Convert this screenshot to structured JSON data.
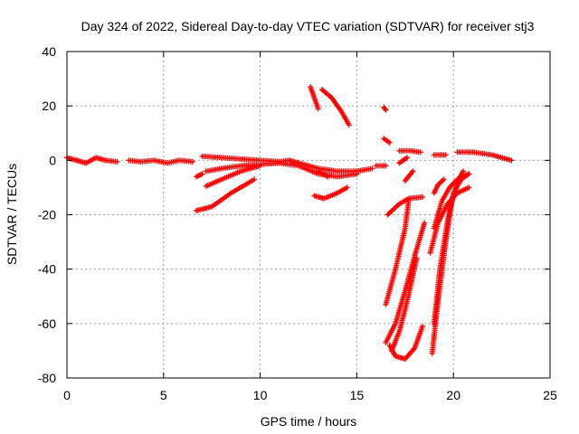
{
  "chart_data": {
    "type": "scatter",
    "title": "Day 324 of 2022, Sidereal Day-to-day VTEC variation (SDTVAR) for receiver stj3",
    "xlabel": "GPS time / hours",
    "ylabel": "SDTVAR / TECUs",
    "xlim": [
      0,
      25
    ],
    "ylim": [
      -80,
      40
    ],
    "x_ticks": [
      "0",
      "5",
      "10",
      "15",
      "20",
      "25"
    ],
    "y_ticks": [
      "-80",
      "-60",
      "-40",
      "-20",
      "0",
      "20",
      "40"
    ],
    "grid": true,
    "marker": "+",
    "color": "#ff0000",
    "series": [
      {
        "segments": [
          {
            "x": [
              0,
              0.5,
              1.0,
              1.5,
              2.0,
              2.6
            ],
            "y": [
              1,
              0,
              -1,
              1,
              0,
              -0.5
            ]
          },
          {
            "x": [
              3.2,
              3.8,
              4.5,
              5.2,
              5.8,
              6.5
            ],
            "y": [
              0,
              -0.5,
              0,
              -1,
              0,
              -0.5
            ]
          },
          {
            "x": [
              7.0,
              8.0,
              9.0,
              10.0,
              11.0,
              11.5,
              12.0,
              13.0,
              14.0,
              15.0,
              15.8
            ],
            "y": [
              1.5,
              1,
              0.5,
              0,
              -0.5,
              0,
              -1,
              -3,
              -4,
              -4,
              -3
            ]
          },
          {
            "x": [
              7.2,
              8.0,
              9.0,
              10.0,
              11.0,
              12.0,
              13.0,
              14.0,
              15.0
            ],
            "y": [
              -4,
              -3,
              -2,
              -1.5,
              -1,
              -2,
              -5,
              -6,
              -5
            ]
          },
          {
            "x": [
              16.0,
              16.5
            ],
            "y": [
              -2,
              -2
            ]
          },
          {
            "x": [
              6.7,
              7.0
            ],
            "y": [
              -6,
              -5
            ]
          }
        ]
      },
      {
        "segments": [
          {
            "x": [
              7.2,
              8.0,
              9.0,
              10.0
            ],
            "y": [
              -9.5,
              -7,
              -4,
              -2
            ]
          },
          {
            "x": [
              6.7,
              7.5,
              8.5,
              9.7
            ],
            "y": [
              -18.5,
              -17,
              -12,
              -7
            ]
          }
        ]
      },
      {
        "segments": [
          {
            "x": [
              12.6,
              13.0
            ],
            "y": [
              27,
              19
            ]
          },
          {
            "x": [
              13.2,
              13.7,
              14.2,
              14.6
            ],
            "y": [
              26,
              23,
              18,
              13
            ]
          },
          {
            "x": [
              16.4,
              16.5
            ],
            "y": [
              19.5,
              18.5
            ]
          },
          {
            "x": [
              16.4,
              16.7
            ],
            "y": [
              8,
              6.5
            ]
          },
          {
            "x": [
              12.8,
              13.3,
              14.0,
              14.5
            ],
            "y": [
              -13,
              -14,
              -12,
              -10
            ]
          },
          {
            "x": [
              13.0,
              13.5
            ],
            "y": [
              -4,
              -6
            ]
          }
        ]
      },
      {
        "segments": [
          {
            "x": [
              17.2,
              17.8,
              18.3
            ],
            "y": [
              3.5,
              3.5,
              3
            ]
          },
          {
            "x": [
              19.0,
              19.6
            ],
            "y": [
              2,
              2
            ]
          },
          {
            "x": [
              20.2,
              21.0,
              22.0,
              23.0
            ],
            "y": [
              3,
              3,
              2,
              0
            ]
          },
          {
            "x": [
              17.2,
              17.4,
              17.6
            ],
            "y": [
              -1,
              0,
              1
            ]
          }
        ]
      },
      {
        "segments": [
          {
            "x": [
              16.6,
              17.2,
              17.7,
              18.4
            ],
            "y": [
              -20,
              -16,
              -14,
              -13.5
            ]
          },
          {
            "x": [
              17.5,
              17.9
            ],
            "y": [
              -7.5,
              -4
            ]
          },
          {
            "x": [
              16.5,
              17.0,
              17.5,
              17.7
            ],
            "y": [
              -53,
              -40,
              -25,
              -14
            ]
          },
          {
            "x": [
              16.5,
              17.0,
              17.5,
              18.0,
              18.5
            ],
            "y": [
              -67,
              -60,
              -48,
              -35,
              -23
            ]
          },
          {
            "x": [
              16.7,
              17.0,
              17.5,
              18.0,
              18.4
            ],
            "y": [
              -68,
              -72,
              -73,
              -69,
              -61
            ]
          },
          {
            "x": [
              16.8,
              17.2,
              17.6,
              18.1
            ],
            "y": [
              -70,
              -63,
              -52,
              -36
            ]
          },
          {
            "x": [
              18.9,
              19.2,
              19.6,
              19.9,
              20.2,
              20.5
            ],
            "y": [
              -71,
              -52,
              -30,
              -16,
              -8,
              -4
            ]
          },
          {
            "x": [
              19.0,
              19.3,
              19.7,
              20.0,
              20.4,
              20.8
            ],
            "y": [
              -60,
              -40,
              -22,
              -12,
              -7,
              -5
            ]
          },
          {
            "x": [
              18.8,
              19.2,
              19.7,
              20.2,
              20.8
            ],
            "y": [
              -34,
              -23,
              -16,
              -12,
              -10
            ]
          },
          {
            "x": [
              19.0,
              19.4,
              19.8,
              20.2,
              20.8
            ],
            "y": [
              -25,
              -15,
              -10,
              -7,
              -5
            ]
          },
          {
            "x": [
              19.0,
              19.2,
              19.5
            ],
            "y": [
              -12,
              -9,
              -7
            ]
          }
        ]
      }
    ]
  }
}
